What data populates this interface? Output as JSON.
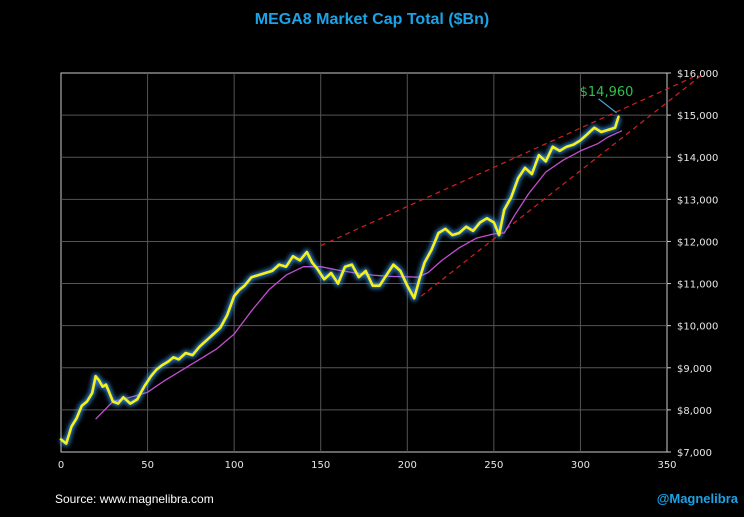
{
  "chart_data": {
    "type": "line",
    "title": "MEGA8 Market Cap Total ($Bn)",
    "xlabel": "",
    "ylabel": "",
    "xlim": [
      0,
      350
    ],
    "ylim": [
      7000,
      16000
    ],
    "x_ticks": [
      0,
      50,
      100,
      150,
      200,
      250,
      300,
      350
    ],
    "x_tick_labels": [
      "0",
      "50",
      "100",
      "150",
      "200",
      "250",
      "300",
      "350"
    ],
    "y_ticks": [
      7000,
      8000,
      9000,
      10000,
      11000,
      12000,
      13000,
      14000,
      15000,
      16000
    ],
    "y_tick_labels": [
      "$7,000",
      "$8,000",
      "$9,000",
      "$10,000",
      "$11,000",
      "$12,000",
      "$13,000",
      "$14,000",
      "$15,000",
      "$16,000"
    ],
    "grid": true,
    "series": [
      {
        "name": "MEGA8 Market Cap",
        "color": "#f5f01e",
        "x": [
          0,
          3,
          6,
          9,
          12,
          15,
          18,
          20,
          22,
          24,
          26,
          28,
          30,
          33,
          36,
          40,
          44,
          48,
          52,
          55,
          58,
          62,
          65,
          68,
          72,
          76,
          80,
          84,
          88,
          92,
          96,
          100,
          103,
          106,
          110,
          114,
          118,
          122,
          126,
          130,
          134,
          138,
          142,
          145,
          148,
          152,
          156,
          160,
          164,
          168,
          172,
          176,
          180,
          184,
          188,
          192,
          196,
          200,
          204,
          207,
          210,
          214,
          218,
          222,
          226,
          230,
          234,
          238,
          242,
          246,
          250,
          253,
          256,
          260,
          264,
          268,
          272,
          276,
          280,
          284,
          288,
          292,
          296,
          300,
          304,
          308,
          312,
          316,
          320,
          322
        ],
        "values": [
          7300,
          7200,
          7600,
          7800,
          8100,
          8200,
          8400,
          8800,
          8700,
          8550,
          8600,
          8400,
          8200,
          8150,
          8300,
          8150,
          8250,
          8550,
          8800,
          8950,
          9050,
          9150,
          9250,
          9200,
          9350,
          9300,
          9500,
          9650,
          9800,
          9950,
          10250,
          10700,
          10850,
          10950,
          11150,
          11200,
          11250,
          11300,
          11450,
          11400,
          11650,
          11550,
          11750,
          11500,
          11350,
          11100,
          11250,
          11000,
          11400,
          11450,
          11150,
          11300,
          10950,
          10950,
          11200,
          11450,
          11300,
          10950,
          10650,
          11100,
          11500,
          11800,
          12200,
          12300,
          12150,
          12200,
          12350,
          12250,
          12450,
          12550,
          12450,
          12150,
          12750,
          13050,
          13500,
          13750,
          13600,
          14050,
          13900,
          14250,
          14150,
          14250,
          14300,
          14400,
          14550,
          14700,
          14600,
          14650,
          14700,
          14960
        ]
      },
      {
        "name": "Moving Average",
        "color": "#c24fd0",
        "x": [
          20,
          30,
          40,
          50,
          60,
          70,
          80,
          90,
          100,
          110,
          120,
          130,
          140,
          150,
          160,
          170,
          180,
          190,
          200,
          206,
          212,
          220,
          230,
          240,
          250,
          256,
          262,
          270,
          280,
          290,
          300,
          310,
          316,
          324
        ],
        "values": [
          7780,
          8200,
          8300,
          8420,
          8700,
          8950,
          9200,
          9450,
          9800,
          10350,
          10850,
          11200,
          11400,
          11400,
          11320,
          11250,
          11200,
          11170,
          11160,
          11150,
          11260,
          11550,
          11850,
          12080,
          12180,
          12200,
          12620,
          13130,
          13650,
          13930,
          14150,
          14320,
          14480,
          14630
        ]
      }
    ],
    "trendlines": [
      {
        "name": "upper-trendline",
        "color": "#d42020",
        "style": "dashed",
        "x1": 150,
        "y1": 11900,
        "x2": 365,
        "y2": 15900
      },
      {
        "name": "lower-trendline",
        "color": "#d42020",
        "style": "dashed",
        "x1": 208,
        "y1": 10700,
        "x2": 370,
        "y2": 15950
      }
    ],
    "annotations": [
      {
        "text": "$14,960",
        "x": 322,
        "y": 14960,
        "color": "#2fbf4a"
      }
    ]
  },
  "footer": {
    "source": "Source: www.magnelibra.com",
    "handle": "@Magnelibra"
  },
  "colors": {
    "background": "#000000",
    "grid": "#555555",
    "title": "#1aa3e8",
    "handle": "#1aa3e8",
    "glow": "#3aa0ff",
    "callout_line": "#4aa8e8"
  }
}
